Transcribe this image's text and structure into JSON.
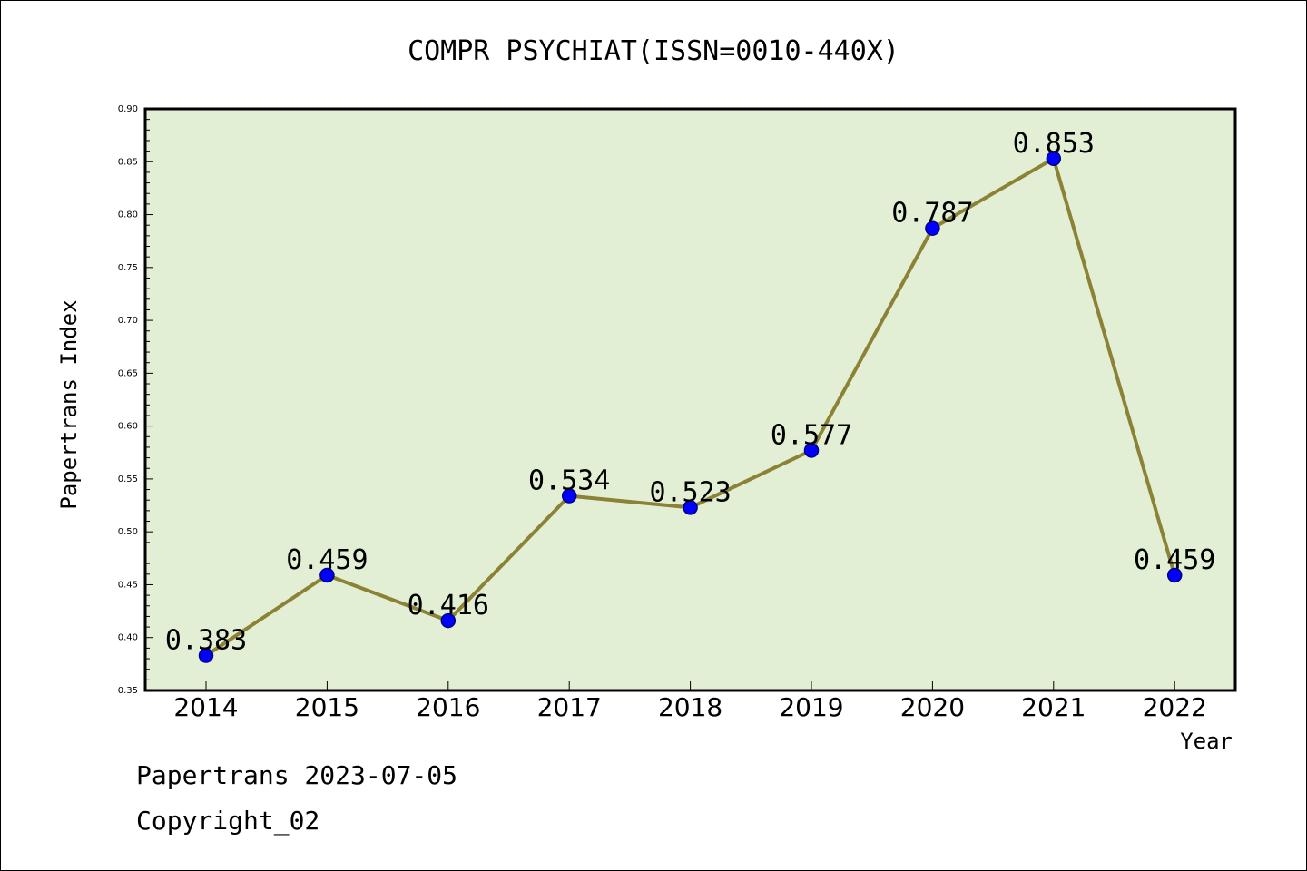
{
  "chart_data": {
    "type": "line",
    "title": "COMPR PSYCHIAT(ISSN=0010-440X)",
    "xlabel": "Year",
    "ylabel": "Papertrans Index",
    "categories": [
      "2014",
      "2015",
      "2016",
      "2017",
      "2018",
      "2019",
      "2020",
      "2021",
      "2022"
    ],
    "series": [
      {
        "values": [
          0.383,
          0.459,
          0.416,
          0.534,
          0.523,
          0.577,
          0.787,
          0.853,
          0.459
        ],
        "labels": [
          "0.383",
          "0.459",
          "0.416",
          "0.534",
          "0.523",
          "0.577",
          "0.787",
          "0.853",
          "0.459"
        ]
      }
    ],
    "ylim": [
      0.35,
      0.9
    ],
    "yticks": [
      "0.35",
      "0.40",
      "0.45",
      "0.50",
      "0.55",
      "0.60",
      "0.65",
      "0.70",
      "0.75",
      "0.80",
      "0.85",
      "0.90"
    ],
    "grid": false,
    "colors": {
      "plot_background": "#e2efd5",
      "line": "#8b8235",
      "marker": "#0000ff",
      "marker_edge": "#000080"
    }
  },
  "footer": {
    "date_line": "Papertrans 2023-07-05",
    "copyright_line": "Copyright_02"
  }
}
